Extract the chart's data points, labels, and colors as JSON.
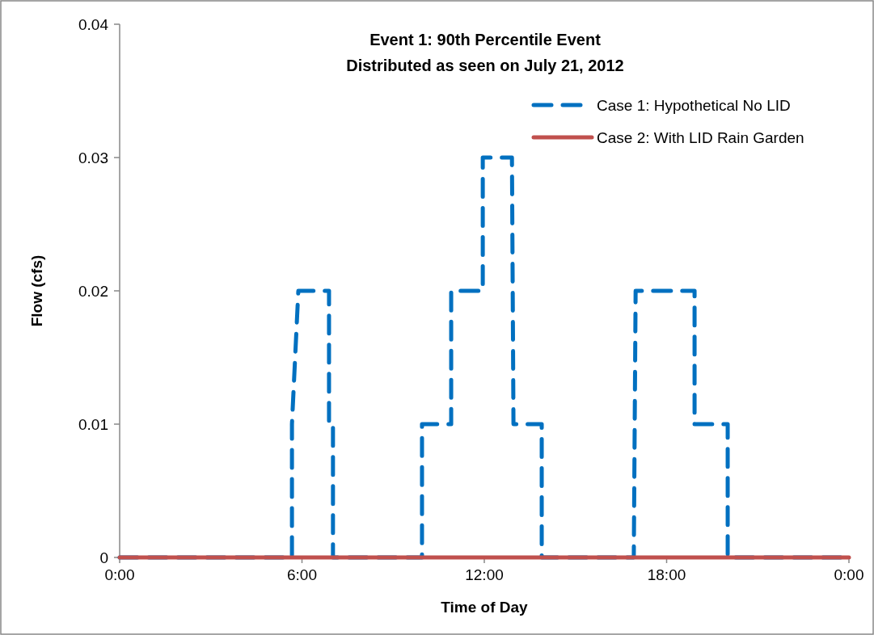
{
  "chart_data": {
    "type": "line",
    "title": "Event 1: 90th Percentile Event",
    "subtitle": "Distributed as seen on July 21, 2012",
    "xlabel": "Time of Day",
    "ylabel": "Flow (cfs)",
    "xlim": [
      0,
      24
    ],
    "xticks": [
      {
        "value": 0,
        "label": "0:00"
      },
      {
        "value": 6,
        "label": "6:00"
      },
      {
        "value": 12,
        "label": "12:00"
      },
      {
        "value": 18,
        "label": "18:00"
      },
      {
        "value": 24,
        "label": "0:00"
      }
    ],
    "ylim": [
      0,
      0.04
    ],
    "yticks": [
      0,
      0.01,
      0.02,
      0.03,
      0.04
    ],
    "grid": false,
    "legend": "top right",
    "series": [
      {
        "name": "Case 1: Hypothetical No LID",
        "color": "#0070c0",
        "line_style": "dashed",
        "x": [
          0,
          5.67,
          5.67,
          5.88,
          6.89,
          6.89,
          7.02,
          7.02,
          9.95,
          9.95,
          10.91,
          10.91,
          11.95,
          11.95,
          12.91,
          12.96,
          13.89,
          13.89,
          16.92,
          16.98,
          18.92,
          18.92,
          20.01,
          20.01,
          24
        ],
        "values": [
          0,
          0,
          0.01,
          0.02,
          0.02,
          0.01,
          0.01,
          0,
          0,
          0.01,
          0.01,
          0.02,
          0.02,
          0.03,
          0.03,
          0.01,
          0.01,
          0,
          0,
          0.02,
          0.02,
          0.01,
          0.01,
          0,
          0
        ]
      },
      {
        "name": "Case 2: With LID Rain Garden",
        "color": "#c0504d",
        "line_style": "solid",
        "x": [
          0,
          24
        ],
        "values": [
          0,
          0
        ]
      }
    ]
  }
}
